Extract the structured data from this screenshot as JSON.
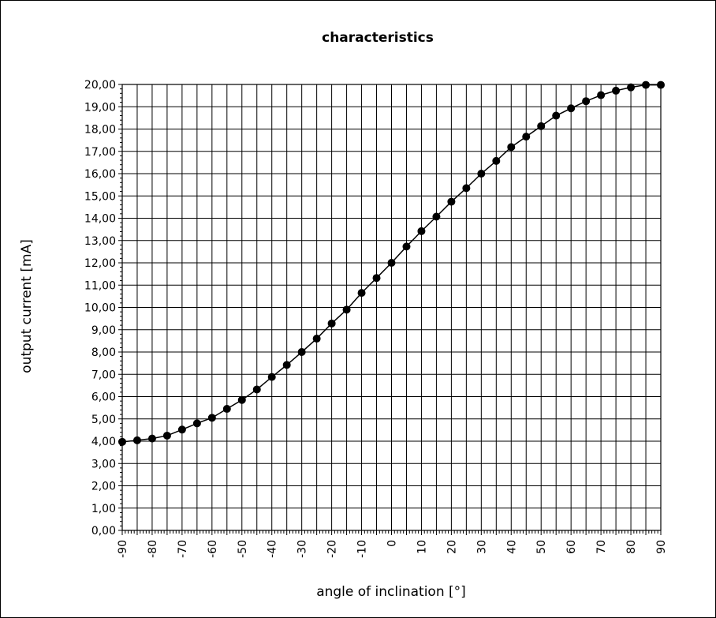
{
  "chart_data": {
    "type": "line",
    "title": "characteristics",
    "xlabel": "angle of inclination [°]",
    "ylabel": "output current [mA]",
    "xlim": [
      -90,
      90
    ],
    "ylim": [
      0,
      20
    ],
    "grid": true,
    "x_ticks": [
      "-90",
      "-80",
      "-70",
      "-60",
      "-50",
      "-40",
      "-30",
      "-20",
      "-10",
      "0",
      "10",
      "20",
      "30",
      "40",
      "50",
      "60",
      "70",
      "80",
      "90"
    ],
    "y_ticks": [
      "0,00",
      "1,00",
      "2,00",
      "3,00",
      "4,00",
      "5,00",
      "6,00",
      "7,00",
      "8,00",
      "9,00",
      "10,00",
      "11,00",
      "12,00",
      "13,00",
      "14,00",
      "15,00",
      "16,00",
      "17,00",
      "18,00",
      "19,00",
      "20,00"
    ],
    "x": [
      -90,
      -85,
      -80,
      -75,
      -70,
      -65,
      -60,
      -55,
      -50,
      -45,
      -40,
      -35,
      -30,
      -25,
      -20,
      -15,
      -10,
      -5,
      0,
      5,
      10,
      15,
      20,
      25,
      30,
      35,
      40,
      45,
      50,
      55,
      60,
      65,
      70,
      75,
      80,
      85,
      90
    ],
    "series": [
      {
        "values": [
          3.97,
          4.04,
          4.12,
          4.25,
          4.52,
          4.8,
          5.05,
          5.45,
          5.85,
          6.32,
          6.88,
          7.42,
          8.0,
          8.6,
          9.28,
          9.9,
          10.65,
          11.32,
          12.0,
          12.73,
          13.42,
          14.07,
          14.74,
          15.35,
          16.0,
          16.57,
          17.19,
          17.66,
          18.13,
          18.6,
          18.93,
          19.25,
          19.52,
          19.72,
          19.87,
          19.98,
          19.98
        ]
      }
    ],
    "line_color": "#000000",
    "marker_color": "#000000"
  }
}
